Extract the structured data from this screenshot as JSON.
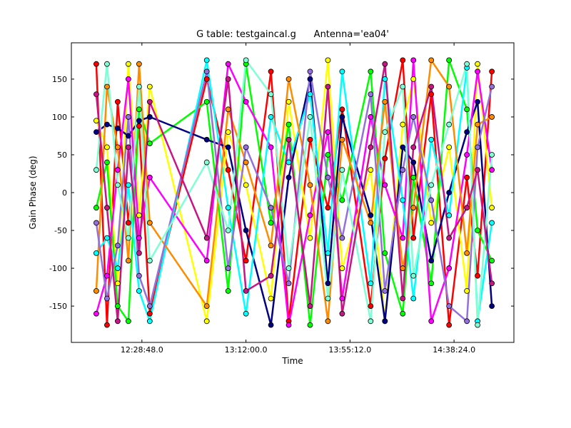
{
  "chart_data": {
    "type": "line",
    "title": "G table: testgaincal.g      Antenna='ea04'",
    "x_label": "Time",
    "y_label": "Gain Phase (deg)",
    "x": [
      43792,
      44059,
      44325,
      44591,
      44858,
      45124,
      46544,
      47077,
      47521,
      48142,
      48586,
      49118,
      49562,
      49917,
      50627,
      50982,
      51426,
      51692,
      52136,
      52580,
      53024,
      53290,
      53646
    ],
    "xlim": [
      43171,
      54195
    ],
    "xticks": [
      {
        "value": 44928,
        "label": "12:28:48.0"
      },
      {
        "value": 47520,
        "label": "13:12:00.0"
      },
      {
        "value": 50112,
        "label": "13:55:12.0"
      },
      {
        "value": 52704,
        "label": "14:38:24.0"
      }
    ],
    "ylim": [
      -198,
      198
    ],
    "yticks": [
      -150,
      -100,
      -50,
      0,
      50,
      100,
      150
    ],
    "series": [
      {
        "color": "#ff0000",
        "values": [
          170,
          -175,
          120,
          -40,
          88,
          -160,
          150,
          30,
          -90,
          160,
          -170,
          70,
          -20,
          110,
          -150,
          45,
          175,
          -60,
          130,
          -175,
          20,
          -110,
          160
        ]
      },
      {
        "color": "#ffff00",
        "values": [
          95,
          60,
          -120,
          170,
          -30,
          140,
          -170,
          80,
          10,
          -140,
          120,
          -60,
          175,
          -100,
          30,
          -170,
          90,
          150,
          -40,
          60,
          -130,
          170,
          -20
        ]
      },
      {
        "color": "#00ff00",
        "values": [
          -20,
          40,
          -150,
          -170,
          110,
          65,
          120,
          -130,
          170,
          -40,
          90,
          -175,
          50,
          -10,
          160,
          -80,
          -160,
          20,
          -120,
          175,
          110,
          -50,
          -90
        ]
      },
      {
        "color": "#000080",
        "values": [
          80,
          90,
          85,
          75,
          95,
          100,
          70,
          60,
          -50,
          -175,
          20,
          150,
          -120,
          100,
          -30,
          -170,
          60,
          40,
          -90,
          0,
          80,
          120,
          -150
        ]
      },
      {
        "color": "#ff00ff",
        "values": [
          -160,
          -110,
          30,
          150,
          -60,
          20,
          -90,
          170,
          120,
          60,
          -175,
          -30,
          80,
          -140,
          100,
          10,
          -60,
          175,
          -170,
          -100,
          50,
          160,
          30
        ]
      },
      {
        "color": "#00ffff",
        "values": [
          -80,
          -60,
          -100,
          10,
          -130,
          -170,
          175,
          -20,
          -160,
          100,
          40,
          130,
          -80,
          160,
          -120,
          150,
          -10,
          -140,
          70,
          -30,
          165,
          -170,
          -40
        ]
      },
      {
        "color": "#ff8c00",
        "values": [
          -130,
          140,
          60,
          -90,
          170,
          -40,
          -150,
          110,
          40,
          -70,
          150,
          10,
          -170,
          70,
          -40,
          120,
          -100,
          -20,
          175,
          140,
          -80,
          90,
          100
        ]
      },
      {
        "color": "#9370db",
        "values": [
          -40,
          -140,
          -70,
          100,
          -110,
          -150,
          160,
          -100,
          60,
          -20,
          -120,
          160,
          20,
          -60,
          130,
          -130,
          30,
          100,
          -10,
          -150,
          -170,
          60,
          140
        ]
      },
      {
        "color": "#7fffd4",
        "values": [
          30,
          170,
          10,
          -60,
          140,
          -90,
          40,
          -50,
          175,
          130,
          -100,
          100,
          -140,
          30,
          -170,
          80,
          140,
          -110,
          10,
          90,
          170,
          -175,
          50
        ]
      },
      {
        "color": "#c71585",
        "values": [
          130,
          -20,
          -170,
          60,
          -80,
          120,
          -60,
          150,
          -130,
          -110,
          70,
          -150,
          140,
          -160,
          60,
          170,
          -140,
          60,
          140,
          -60,
          -20,
          30,
          -120
        ]
      }
    ]
  }
}
